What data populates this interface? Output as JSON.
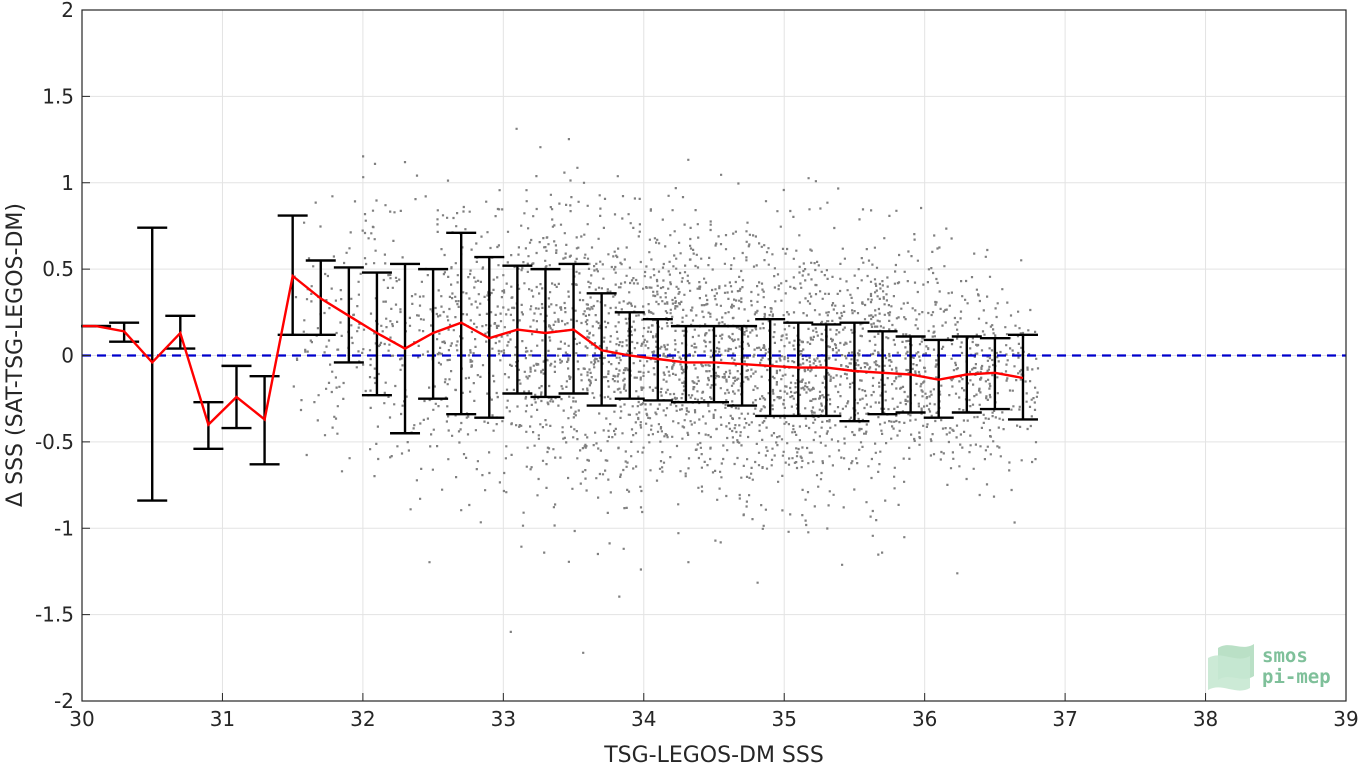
{
  "chart_data": {
    "type": "scatter",
    "title": "",
    "xlabel": "TSG-LEGOS-DM SSS",
    "ylabel": "Δ SSS (SAT-TSG-LEGOS-DM)",
    "xlim": [
      30,
      39
    ],
    "ylim": [
      -2,
      2
    ],
    "xticks": [
      "30",
      "31",
      "32",
      "33",
      "34",
      "35",
      "36",
      "37",
      "38",
      "39"
    ],
    "yticks": [
      "-2",
      "-1.5",
      "-1",
      "-0.5",
      "0",
      "0.5",
      "1",
      "1.5",
      "2"
    ],
    "grid": true,
    "reference_line": {
      "y": 0,
      "color": "#0000cc",
      "style": "dashed"
    },
    "scatter_color": "#808080",
    "mean_color": "#ff0000",
    "errorbar_color": "#000000",
    "binned_stats": {
      "x": [
        30.1,
        30.3,
        30.5,
        30.7,
        30.9,
        31.1,
        31.3,
        31.5,
        31.7,
        31.9,
        32.1,
        32.3,
        32.5,
        32.7,
        32.9,
        33.1,
        33.3,
        33.5,
        33.7,
        33.9,
        34.1,
        34.3,
        34.5,
        34.7,
        34.9,
        35.1,
        35.3,
        35.5,
        35.7,
        35.9,
        36.1,
        36.3,
        36.5,
        36.7
      ],
      "mean": [
        0.17,
        0.14,
        -0.04,
        0.13,
        -0.4,
        -0.24,
        -0.37,
        0.46,
        0.33,
        0.23,
        0.13,
        0.04,
        0.13,
        0.19,
        0.1,
        0.15,
        0.13,
        0.15,
        0.03,
        0.0,
        -0.02,
        -0.04,
        -0.04,
        -0.05,
        -0.06,
        -0.07,
        -0.07,
        -0.09,
        -0.1,
        -0.11,
        -0.14,
        -0.11,
        -0.1,
        -0.13
      ],
      "lower": [
        0.17,
        0.08,
        -0.84,
        0.04,
        -0.54,
        -0.42,
        -0.63,
        0.12,
        0.12,
        -0.04,
        -0.23,
        -0.45,
        -0.25,
        -0.34,
        -0.36,
        -0.22,
        -0.24,
        -0.22,
        -0.29,
        -0.25,
        -0.26,
        -0.27,
        -0.27,
        -0.29,
        -0.35,
        -0.35,
        -0.35,
        -0.38,
        -0.34,
        -0.33,
        -0.36,
        -0.33,
        -0.31,
        -0.37
      ],
      "upper": [
        0.17,
        0.19,
        0.74,
        0.23,
        -0.27,
        -0.06,
        -0.12,
        0.81,
        0.55,
        0.51,
        0.48,
        0.53,
        0.5,
        0.71,
        0.57,
        0.52,
        0.5,
        0.53,
        0.36,
        0.25,
        0.21,
        0.17,
        0.17,
        0.17,
        0.21,
        0.19,
        0.18,
        0.19,
        0.14,
        0.11,
        0.09,
        0.11,
        0.1,
        0.12
      ]
    },
    "scatter_density": {
      "x": [
        31.5,
        32.0,
        32.5,
        33.0,
        33.5,
        34.0,
        34.5,
        35.0,
        35.5,
        36.0,
        36.5,
        36.8
      ],
      "center": [
        0.1,
        0.2,
        0.15,
        0.1,
        0.08,
        0.0,
        -0.04,
        -0.06,
        -0.08,
        -0.11,
        -0.12,
        -0.14
      ],
      "spread": [
        0.3,
        0.4,
        0.45,
        0.45,
        0.45,
        0.4,
        0.4,
        0.4,
        0.38,
        0.35,
        0.3,
        0.28
      ],
      "weight": [
        0.08,
        0.3,
        0.45,
        0.6,
        0.8,
        1.0,
        1.0,
        1.0,
        0.9,
        0.7,
        0.45,
        0.2
      ]
    }
  },
  "logo": {
    "line1": "smos",
    "line2": "pi-mep",
    "color": "#7fc09a"
  }
}
